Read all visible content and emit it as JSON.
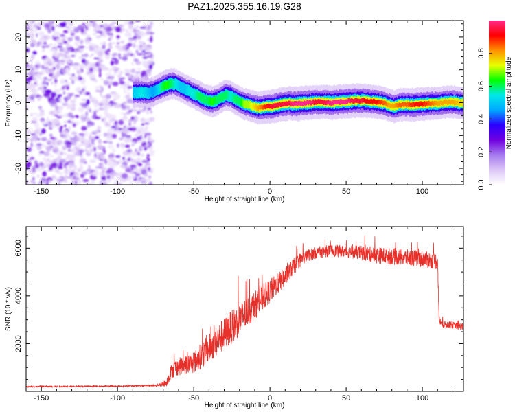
{
  "chart_data": [
    {
      "type": "heatmap",
      "title": "PAZ1.2025.355.16.19.G28",
      "xlabel": "Height of straight line (km)",
      "ylabel": "Frequency (Hz)",
      "xlim": [
        -160,
        127
      ],
      "ylim": [
        -25,
        25
      ],
      "x_ticks": [
        -150,
        -100,
        -50,
        0,
        50,
        100
      ],
      "y_ticks": [
        20,
        10,
        0,
        -10,
        -20
      ],
      "noise_region_x": [
        -160,
        -77
      ],
      "ridge_x": [
        -90,
        -84,
        -80,
        -77,
        -74,
        -71,
        -68,
        -65,
        -62,
        -59,
        -56,
        -53,
        -50,
        -47,
        -44,
        -41,
        -38,
        -35,
        -32,
        -29,
        -26,
        -23,
        -20,
        -17,
        -14,
        -11,
        -8,
        -5,
        -2,
        1,
        4,
        8,
        12,
        16,
        20,
        25,
        30,
        35,
        40,
        45,
        50,
        55,
        60,
        65,
        70,
        75,
        78,
        81,
        85,
        90,
        95,
        100,
        105,
        110,
        115,
        120,
        127
      ],
      "ridge_freq": [
        3.0,
        3.2,
        3.0,
        3.4,
        4.0,
        4.8,
        5.4,
        5.8,
        5.6,
        4.8,
        4.0,
        3.4,
        2.6,
        2.0,
        1.2,
        0.6,
        0.4,
        0.8,
        1.6,
        2.4,
        2.0,
        1.0,
        0.4,
        -0.4,
        -0.8,
        -1.2,
        -1.6,
        -1.4,
        -1.2,
        -1.2,
        -0.8,
        -0.4,
        -0.2,
        -0.4,
        -0.2,
        0.0,
        0.2,
        0.2,
        0.0,
        0.2,
        0.4,
        0.6,
        0.6,
        0.4,
        0.2,
        -0.2,
        -0.8,
        -1.2,
        -0.6,
        -0.6,
        -0.6,
        -0.4,
        -0.2,
        -0.2,
        0.2,
        0.2,
        -0.2
      ],
      "ridge_amplitude": [
        0.5,
        0.55,
        0.5,
        0.45,
        0.5,
        0.6,
        0.65,
        0.6,
        0.55,
        0.5,
        0.5,
        0.55,
        0.55,
        0.6,
        0.6,
        0.6,
        0.65,
        0.6,
        0.6,
        0.6,
        0.55,
        0.6,
        0.6,
        0.7,
        0.7,
        0.75,
        0.8,
        0.85,
        0.9,
        0.95,
        0.95,
        0.95,
        0.95,
        1.0,
        1.0,
        1.0,
        0.95,
        0.95,
        1.0,
        1.0,
        1.0,
        0.95,
        0.95,
        0.9,
        0.9,
        0.85,
        0.8,
        0.8,
        0.85,
        0.85,
        0.9,
        0.9,
        0.85,
        0.8,
        0.8,
        0.8,
        0.75
      ],
      "colorbar": {
        "label": "Normalized spectral amplitude",
        "range": [
          0,
          1
        ],
        "ticks": [
          0.0,
          0.2,
          0.4,
          0.6,
          0.8
        ],
        "tick_labels": [
          "0.0",
          "0.2",
          "0.4",
          "0.6",
          "0.8"
        ],
        "colors": [
          "#ffffff",
          "#dcc6f6",
          "#a57aee",
          "#7000e0",
          "#2a00ff",
          "#00a8ff",
          "#00e8e8",
          "#00ff00",
          "#e8ff00",
          "#ff9000",
          "#ff0000",
          "#ff2a8a"
        ]
      }
    },
    {
      "type": "line",
      "title": "",
      "xlabel": "Height of straight line (km)",
      "ylabel": "SNR (10 * v/v)",
      "xlim": [
        -160,
        127
      ],
      "ylim": [
        0,
        6900
      ],
      "x_ticks": [
        -150,
        -100,
        -50,
        0,
        50,
        100
      ],
      "y_ticks": [
        2000,
        4000,
        6000
      ],
      "line_color": "#e8302a",
      "anchors_x": [
        -160,
        -100,
        -75,
        -68,
        -65,
        -62,
        -56,
        -50,
        -45,
        -40,
        -35,
        -30,
        -25,
        -20,
        -15,
        -10,
        -5,
        0,
        5,
        10,
        15,
        20,
        25,
        30,
        35,
        40,
        50,
        60,
        70,
        80,
        90,
        100,
        105,
        110,
        111,
        113,
        117,
        122,
        127
      ],
      "anchors_snr": [
        200,
        220,
        250,
        350,
        800,
        1000,
        1100,
        1200,
        1500,
        1800,
        2100,
        2400,
        2700,
        3000,
        3300,
        3600,
        3900,
        4200,
        4500,
        4800,
        5200,
        5500,
        5700,
        5800,
        5850,
        5900,
        5850,
        5800,
        5700,
        5650,
        5600,
        5550,
        5500,
        5450,
        3000,
        2800,
        2800,
        2750,
        2700
      ],
      "noise_amplitude_snr": [
        30,
        30,
        40,
        150,
        300,
        350,
        400,
        450,
        550,
        600,
        650,
        700,
        700,
        700,
        650,
        600,
        550,
        500,
        450,
        400,
        350,
        300,
        250,
        250,
        250,
        250,
        250,
        300,
        350,
        350,
        350,
        350,
        350,
        350,
        200,
        150,
        150,
        150,
        150
      ]
    }
  ]
}
